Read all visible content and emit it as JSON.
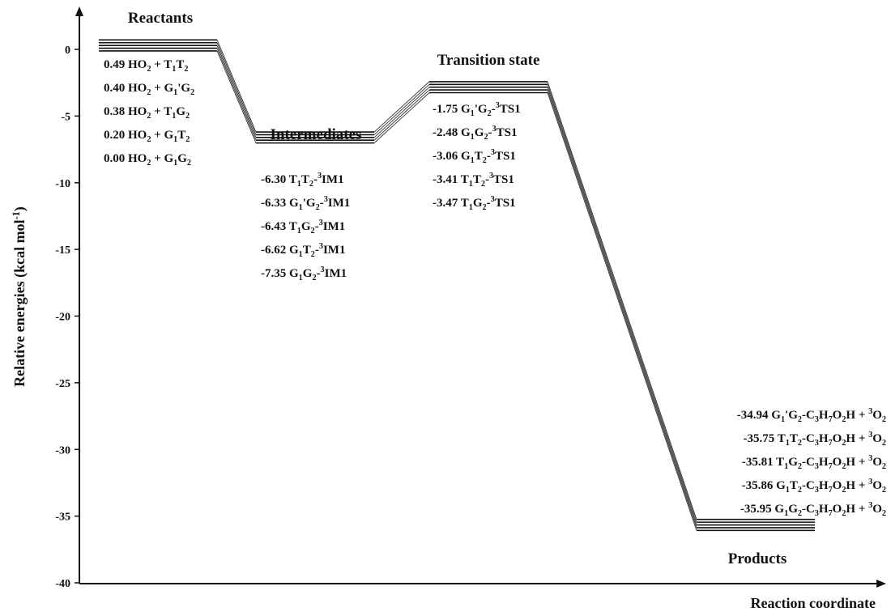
{
  "chart_data": {
    "type": "line",
    "ylabel": "Relative energies (kcal mol<sup>-1</sup>)",
    "xlabel": "Reaction coordinate",
    "ylim": [
      -40,
      2
    ],
    "yticks": [
      0,
      -5,
      -10,
      -15,
      -20,
      -25,
      -30,
      -35,
      -40
    ],
    "states": [
      {
        "key": "reactants",
        "title": "Reactants",
        "levels": [
          {
            "value": 0.49,
            "label": "0.49 HO<sub>2</sub> + T<sub>1</sub>T<sub>2</sub>"
          },
          {
            "value": 0.4,
            "label": "0.40 HO<sub>2</sub> + G<sub>1</sub>'G<sub>2</sub>"
          },
          {
            "value": 0.38,
            "label": "0.38 HO<sub>2</sub> + T<sub>1</sub>G<sub>2</sub>"
          },
          {
            "value": 0.2,
            "label": "0.20 HO<sub>2</sub> + G<sub>1</sub>T<sub>2</sub>"
          },
          {
            "value": 0.0,
            "label": "0.00 HO<sub>2</sub> + G<sub>1</sub>G<sub>2</sub>"
          }
        ]
      },
      {
        "key": "intermediates",
        "title": "Intermediates",
        "levels": [
          {
            "value": -6.3,
            "label": "-6.30 T<sub>1</sub>T<sub>2</sub>-<sup>3</sup>IM1"
          },
          {
            "value": -6.33,
            "label": "-6.33 G<sub>1</sub>'G<sub>2</sub>-<sup>3</sup>IM1"
          },
          {
            "value": -6.43,
            "label": "-6.43 T<sub>1</sub>G<sub>2</sub>-<sup>3</sup>IM1"
          },
          {
            "value": -6.62,
            "label": "-6.62 G<sub>1</sub>T<sub>2</sub>-<sup>3</sup>IM1"
          },
          {
            "value": -7.35,
            "label": "-7.35 G<sub>1</sub>G<sub>2</sub>-<sup>3</sup>IM1"
          }
        ]
      },
      {
        "key": "transition-state",
        "title": "Transition state",
        "levels": [
          {
            "value": -1.75,
            "label": "-1.75 G<sub>1</sub>'G<sub>2</sub>-<sup>3</sup>TS1"
          },
          {
            "value": -2.48,
            "label": "-2.48 G<sub>1</sub>G<sub>2</sub>-<sup>3</sup>TS1"
          },
          {
            "value": -3.06,
            "label": "-3.06 G<sub>1</sub>T<sub>2</sub>-<sup>3</sup>TS1"
          },
          {
            "value": -3.41,
            "label": "-3.41 T<sub>1</sub>T<sub>2</sub>-<sup>3</sup>TS1"
          },
          {
            "value": -3.47,
            "label": "-3.47 T<sub>1</sub>G<sub>2</sub>-<sup>3</sup>TS1"
          }
        ]
      },
      {
        "key": "products",
        "title": "Products",
        "levels": [
          {
            "value": -34.94,
            "label": "-34.94 G<sub>1</sub>'G<sub>2</sub>-C<sub>3</sub>H<sub>7</sub>O<sub>2</sub>H + <sup>3</sup>O<sub>2</sub>"
          },
          {
            "value": -35.75,
            "label": "-35.75 T<sub>1</sub>T<sub>2</sub>-C<sub>3</sub>H<sub>7</sub>O<sub>2</sub>H + <sup>3</sup>O<sub>2</sub>"
          },
          {
            "value": -35.81,
            "label": "-35.81 T<sub>1</sub>G<sub>2</sub>-C<sub>3</sub>H<sub>7</sub>O<sub>2</sub>H + <sup>3</sup>O<sub>2</sub>"
          },
          {
            "value": -35.86,
            "label": "-35.86 G<sub>1</sub>T<sub>2</sub>-C<sub>3</sub>H<sub>7</sub>O<sub>2</sub>H + <sup>3</sup>O<sub>2</sub>"
          },
          {
            "value": -35.95,
            "label": "-35.95 G<sub>1</sub>G<sub>2</sub>-C<sub>3</sub>H<sub>7</sub>O<sub>2</sub>H + <sup>3</sup>O<sub>2</sub>"
          }
        ]
      }
    ]
  }
}
